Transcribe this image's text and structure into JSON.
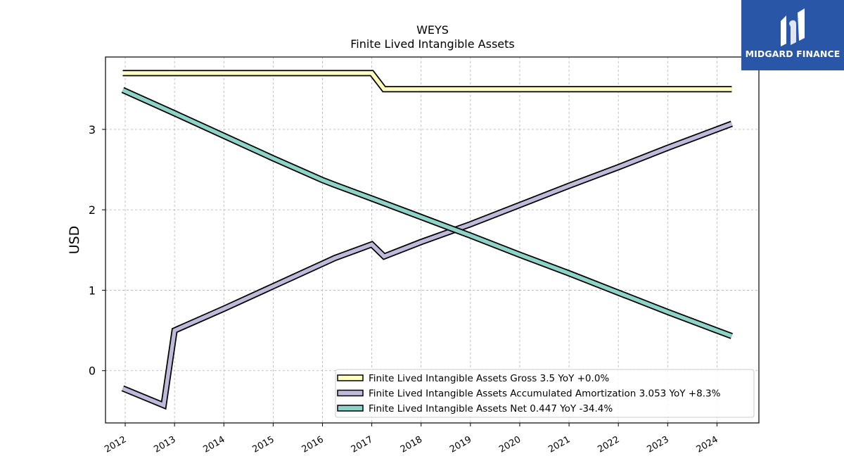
{
  "brand": {
    "name": "MIDGARD FINANCE",
    "bg_color": "#2a56a8"
  },
  "chart_data": {
    "type": "line",
    "title": "WEYS",
    "subtitle": "Finite Lived Intangible Assets",
    "ylabel": "USD",
    "xlabel": "",
    "xlim": [
      2011.6,
      2024.85
    ],
    "ylim": [
      -0.65,
      3.9
    ],
    "x_ticks": [
      2012,
      2013,
      2014,
      2015,
      2016,
      2017,
      2018,
      2019,
      2020,
      2021,
      2022,
      2023,
      2024
    ],
    "y_ticks": [
      0,
      1,
      2,
      3
    ],
    "grid": true,
    "legend_position": "lower-right",
    "series": [
      {
        "name": "Finite Lived Intangible Assets Gross",
        "legend": "Finite Lived Intangible Assets Gross  3.5 YoY +0.0%",
        "color": "#ffffbf",
        "x": [
          2011.95,
          2017.0,
          2017.25,
          2024.3
        ],
        "y": [
          3.7,
          3.7,
          3.5,
          3.5
        ]
      },
      {
        "name": "Finite Lived Intangible Assets Accumulated Amortization",
        "legend": "Finite Lived Intangible Assets Accumulated Amortization  3.053 YoY +8.3%",
        "color": "#bebada",
        "x": [
          2011.95,
          2012.78,
          2013.0,
          2014.0,
          2015.0,
          2016.0,
          2016.25,
          2017.0,
          2017.25,
          2018.0,
          2019.0,
          2020.0,
          2021.0,
          2022.0,
          2023.0,
          2024.3
        ],
        "y": [
          -0.22,
          -0.43,
          0.5,
          0.77,
          1.05,
          1.33,
          1.4,
          1.57,
          1.42,
          1.6,
          1.82,
          2.06,
          2.3,
          2.53,
          2.77,
          3.07
        ]
      },
      {
        "name": "Finite Lived Intangible Assets Net",
        "legend": "Finite Lived Intangible Assets Net  0.447 YoY -34.4%",
        "color": "#8dd3c7",
        "x": [
          2011.95,
          2013.0,
          2014.0,
          2015.0,
          2016.0,
          2016.25,
          2017.0,
          2018.0,
          2019.0,
          2020.0,
          2021.0,
          2022.0,
          2023.0,
          2024.3
        ],
        "y": [
          3.49,
          3.2,
          2.92,
          2.64,
          2.37,
          2.31,
          2.14,
          1.91,
          1.68,
          1.44,
          1.21,
          0.97,
          0.73,
          0.43
        ]
      }
    ]
  }
}
